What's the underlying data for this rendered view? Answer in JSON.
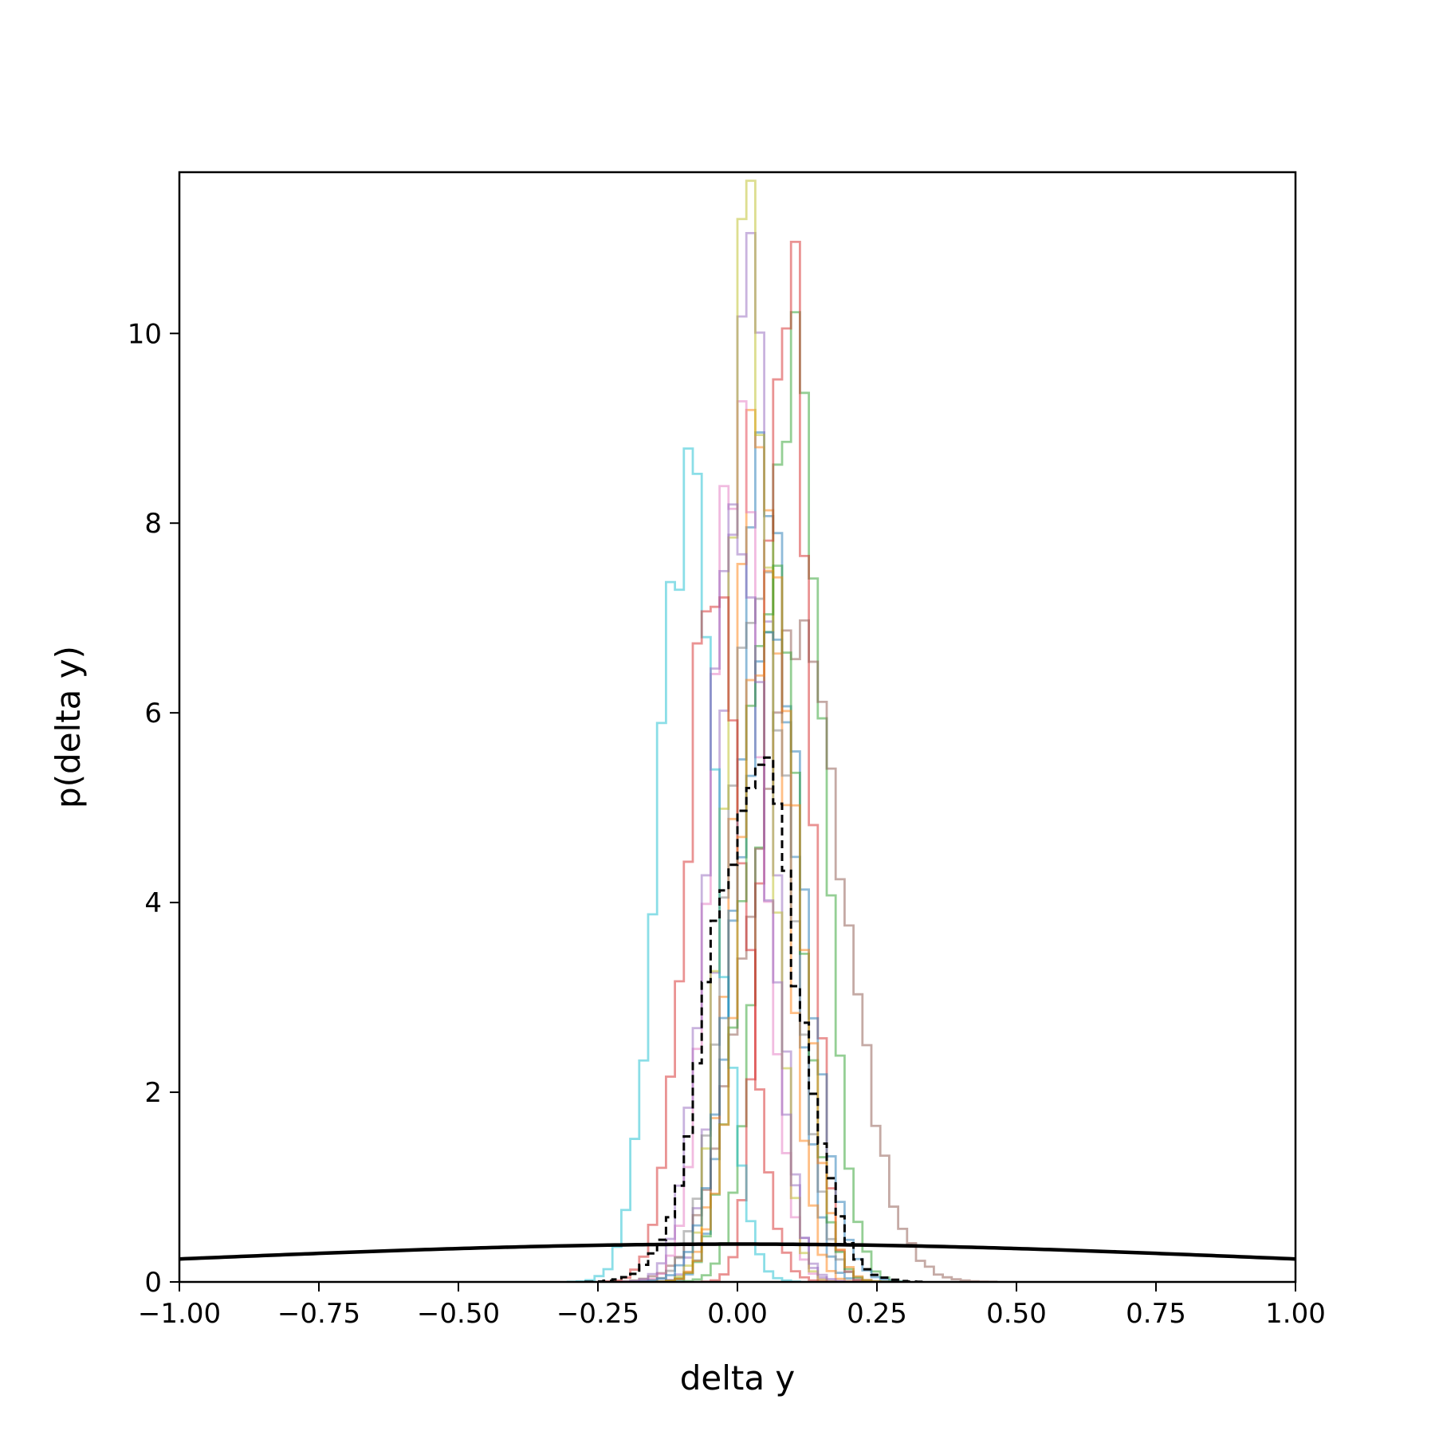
{
  "chart_data": {
    "type": "histogram",
    "title": "",
    "xlabel": "delta y",
    "ylabel": "p(delta y)",
    "xlim": [
      -1.0,
      1.0
    ],
    "ylim": [
      0,
      11.7
    ],
    "grid": false,
    "xticks": [
      -1.0,
      -0.75,
      -0.5,
      -0.25,
      0.0,
      0.25,
      0.5,
      0.75,
      1.0
    ],
    "xtick_labels": [
      "−1.00",
      "−0.75",
      "−0.50",
      "−0.25",
      "0.00",
      "0.25",
      "0.50",
      "0.75",
      "1.00"
    ],
    "yticks": [
      0,
      2,
      4,
      6,
      8,
      10
    ],
    "ytick_labels": [
      "0",
      "2",
      "4",
      "6",
      "8",
      "10"
    ],
    "bin_width": 0.016,
    "series": [
      {
        "color": "#1f77b4",
        "style": "step-translucent",
        "mean": 0.05,
        "std": 0.045,
        "peak": 8.9
      },
      {
        "color": "#ff7f0e",
        "style": "step-translucent",
        "mean": 0.04,
        "std": 0.043,
        "peak": 9.3
      },
      {
        "color": "#2ca02c",
        "style": "step-translucent",
        "mean": 0.1,
        "std": 0.05,
        "peak": 9.5
      },
      {
        "color": "#d62728",
        "style": "step-translucent",
        "mean": 0.09,
        "std": 0.036,
        "peak": 11.1
      },
      {
        "color": "#9467bd",
        "style": "step-translucent",
        "mean": 0.02,
        "std": 0.04,
        "peak": 10.4
      },
      {
        "color": "#8c564b",
        "style": "step-translucent",
        "mean": 0.11,
        "std": 0.085,
        "peak": 6.5
      },
      {
        "color": "#e377c2",
        "style": "step-translucent",
        "mean": 0.0,
        "std": 0.045,
        "peak": 9.0
      },
      {
        "color": "#7f7f7f",
        "style": "step-translucent",
        "mean": 0.04,
        "std": 0.055,
        "peak": 7.4
      },
      {
        "color": "#bcbd22",
        "style": "step-translucent",
        "mean": 0.02,
        "std": 0.038,
        "peak": 10.8
      },
      {
        "color": "#17becf",
        "style": "step-translucent",
        "mean": -0.09,
        "std": 0.05,
        "peak": 8.3
      },
      {
        "color": "#d62728",
        "style": "step-translucent",
        "mean": -0.04,
        "std": 0.05,
        "peak": 7.6
      },
      {
        "color": "#1f77b4",
        "style": "step-translucent",
        "mean": 0.06,
        "std": 0.06,
        "peak": 6.8
      },
      {
        "color": "#2ca02c",
        "style": "step-translucent",
        "mean": 0.06,
        "std": 0.05,
        "peak": 7.2
      },
      {
        "color": "#ff7f0e",
        "style": "step-translucent",
        "mean": 0.06,
        "std": 0.05,
        "peak": 7.5
      },
      {
        "color": "#9467bd",
        "style": "step-translucent",
        "mean": 0.0,
        "std": 0.05,
        "peak": 8.1
      },
      {
        "color": "#000000",
        "style": "step-dashed",
        "mean": 0.03,
        "std": 0.075,
        "peak": 5.55
      }
    ],
    "prior_curve": {
      "color": "#000000",
      "type": "normal",
      "mean": 0.0,
      "std": 1.0
    }
  }
}
